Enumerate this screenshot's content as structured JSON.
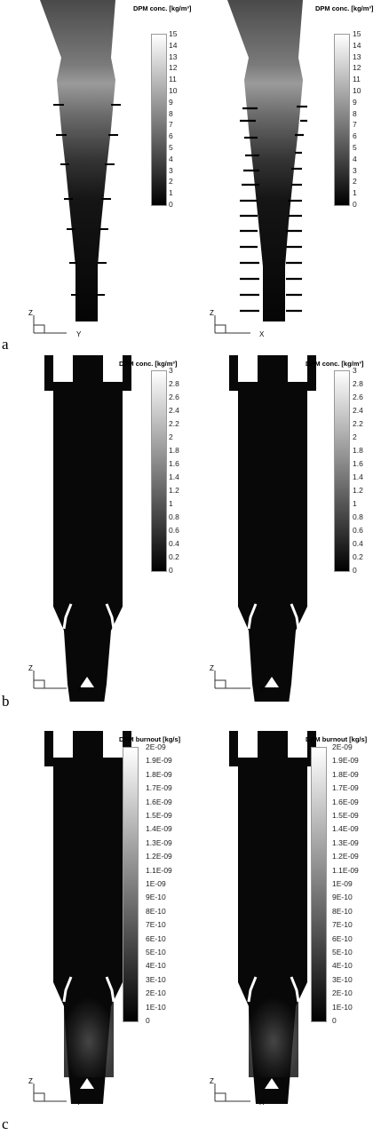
{
  "panels": [
    {
      "id": "a",
      "label": "a",
      "colorbar_title": "DPM conc. [kg/m³]",
      "colorbar_ticks": [
        "15",
        "14",
        "13",
        "12",
        "11",
        "10",
        "9",
        "8",
        "7",
        "6",
        "5",
        "4",
        "3",
        "2",
        "1",
        "0"
      ],
      "views": [
        {
          "axis_v": "Z",
          "axis_h": "Y"
        },
        {
          "axis_v": "Z",
          "axis_h": "X"
        }
      ]
    },
    {
      "id": "b",
      "label": "b",
      "colorbar_title": "DPM conc. [kg/m³]",
      "colorbar_ticks": [
        "3",
        "2.8",
        "2.6",
        "2.4",
        "2.2",
        "2",
        "1.8",
        "1.6",
        "1.4",
        "1.2",
        "1",
        "0.8",
        "0.6",
        "0.4",
        "0.2",
        "0"
      ],
      "views": [
        {
          "axis_v": "Z",
          "axis_h": "Y"
        },
        {
          "axis_v": "Z",
          "axis_h": "X"
        }
      ]
    },
    {
      "id": "c",
      "label": "c",
      "colorbar_title": "DPM burnout [kg/s]",
      "colorbar_ticks": [
        "2E-09",
        "1.9E-09",
        "1.8E-09",
        "1.7E-09",
        "1.6E-09",
        "1.5E-09",
        "1.4E-09",
        "1.3E-09",
        "1.2E-09",
        "1.1E-09",
        "1E-09",
        "9E-10",
        "8E-10",
        "7E-10",
        "6E-10",
        "5E-10",
        "4E-10",
        "3E-10",
        "2E-10",
        "1E-10",
        "0"
      ],
      "views": [
        {
          "axis_v": "Z",
          "axis_h": "Y"
        },
        {
          "axis_v": "Z",
          "axis_h": "X"
        }
      ]
    }
  ]
}
